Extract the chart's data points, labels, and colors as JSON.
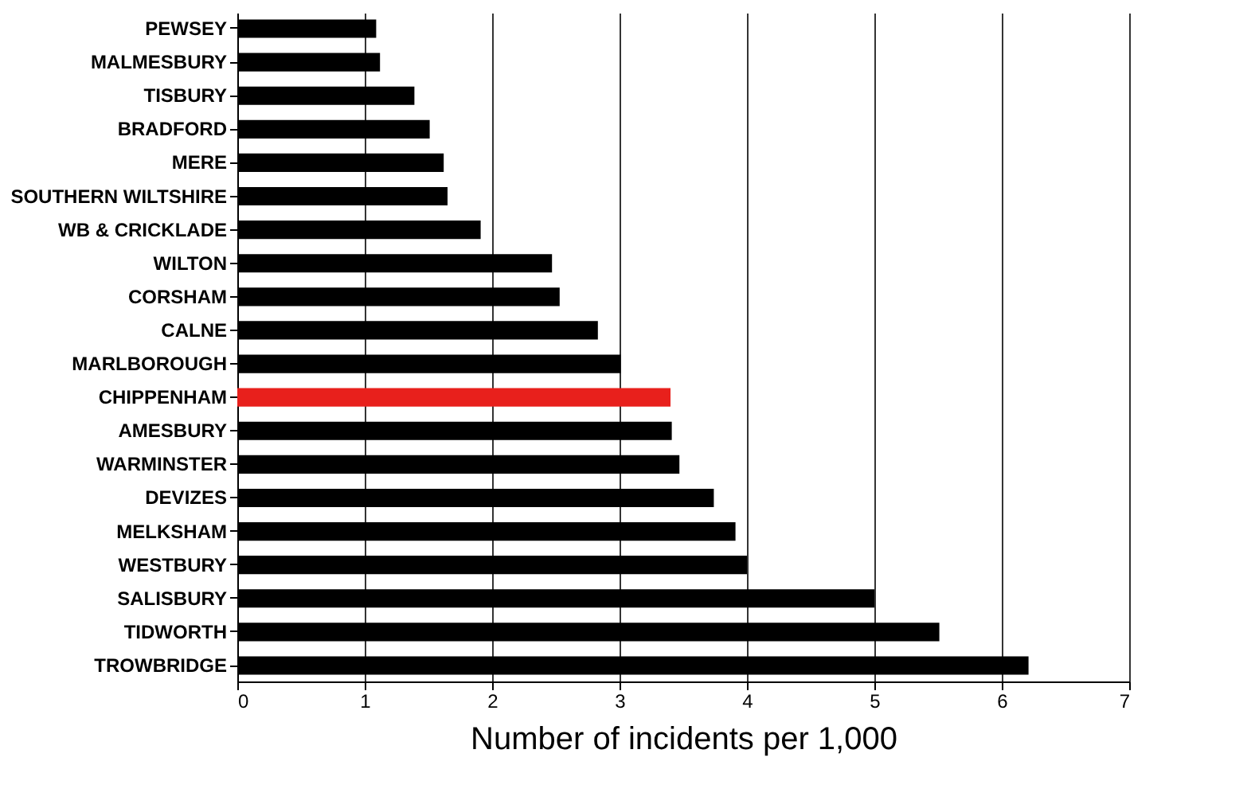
{
  "chart_data": {
    "type": "bar",
    "orientation": "horizontal",
    "xlabel": "Number of incidents per 1,000",
    "categories": [
      "PEWSEY",
      "MALMESBURY",
      "TISBURY",
      "BRADFORD",
      "MERE",
      "SOUTHERN WILTSHIRE",
      "WB & CRICKLADE",
      "WILTON",
      "CORSHAM",
      "CALNE",
      "MARLBOROUGH",
      "CHIPPENHAM",
      "AMESBURY",
      "WARMINSTER",
      "DEVIZES",
      "MELKSHAM",
      "WESTBURY",
      "SALISBURY",
      "TIDWORTH",
      "TROWBRIDGE"
    ],
    "values": [
      1.09,
      1.12,
      1.39,
      1.51,
      1.62,
      1.65,
      1.91,
      2.47,
      2.53,
      2.83,
      3.01,
      3.4,
      3.41,
      3.47,
      3.74,
      3.91,
      4.0,
      5.0,
      5.51,
      6.21
    ],
    "colors": [
      "#000000",
      "#000000",
      "#000000",
      "#000000",
      "#000000",
      "#000000",
      "#000000",
      "#000000",
      "#000000",
      "#000000",
      "#000000",
      "#e8201c",
      "#000000",
      "#000000",
      "#000000",
      "#000000",
      "#000000",
      "#000000",
      "#000000",
      "#000000"
    ],
    "xlim": [
      0,
      7
    ],
    "xticks": [
      0,
      1,
      2,
      3,
      4,
      5,
      6,
      7
    ],
    "grid": "x"
  }
}
